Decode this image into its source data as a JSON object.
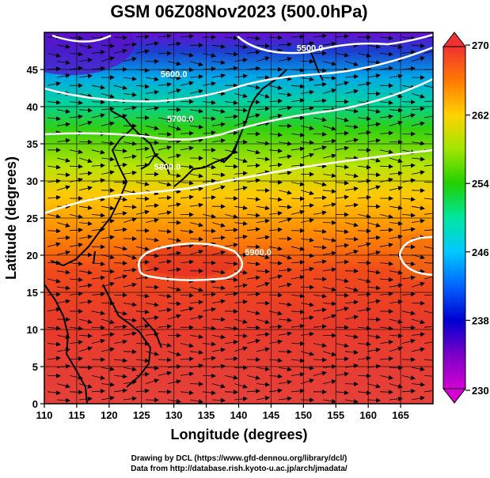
{
  "chart_data": {
    "type": "heatmap",
    "title": "GSM 06Z08Nov2023 (500.0hPa)",
    "xlabel": "Longitude (degrees)",
    "ylabel": "Latitude  (degrees)",
    "xlim": [
      110,
      170
    ],
    "ylim": [
      0,
      50
    ],
    "xticks": [
      110,
      115,
      120,
      125,
      130,
      135,
      140,
      145,
      150,
      155,
      160,
      165
    ],
    "yticks": [
      0,
      5,
      10,
      15,
      20,
      25,
      30,
      35,
      40,
      45
    ],
    "xtick_labels": [
      "110",
      "115",
      "120",
      "125",
      "130",
      "135",
      "140",
      "145",
      "150",
      "155",
      "160",
      "165"
    ],
    "ytick_labels": [
      "0",
      "5",
      "10",
      "15",
      "20",
      "25",
      "30",
      "35",
      "40",
      "45"
    ],
    "grid": true,
    "colorbar": {
      "range": [
        230,
        270
      ],
      "ticks": [
        230,
        238,
        246,
        254,
        262,
        270
      ],
      "tick_labels": [
        "230",
        "238",
        "246",
        "254",
        "262",
        "270"
      ],
      "colors": [
        "#cc00cc",
        "#5a00c8",
        "#0000cc",
        "#0096ff",
        "#00e6c8",
        "#00d000",
        "#c8f000",
        "#ffd200",
        "#ff7a00",
        "#f03c1e",
        "#e62828"
      ]
    },
    "contours": [
      {
        "label": "5500.0",
        "lon": 151,
        "lat": 47.5
      },
      {
        "label": "5600.0",
        "lon": 130,
        "lat": 44
      },
      {
        "label": "5700.0",
        "lon": 131,
        "lat": 38
      },
      {
        "label": "5800.0",
        "lon": 129,
        "lat": 31.5
      },
      {
        "label": "5900.0",
        "lon": 143,
        "lat": 20
      }
    ],
    "series": [
      {
        "type": "temperature_field",
        "lat": [
          50,
          45,
          40,
          35,
          30,
          25,
          20,
          15,
          10,
          5,
          0
        ],
        "values": [
          240,
          245,
          251,
          255,
          259,
          262,
          266,
          267,
          268,
          268,
          268
        ]
      }
    ]
  },
  "credits": {
    "line1": "Drawing by DCL (https://www.gfd-dennou.org/library/dcl/)",
    "line2": "Data from http://database.rish.kyoto-u.ac.jp/arch/jmadata/"
  }
}
